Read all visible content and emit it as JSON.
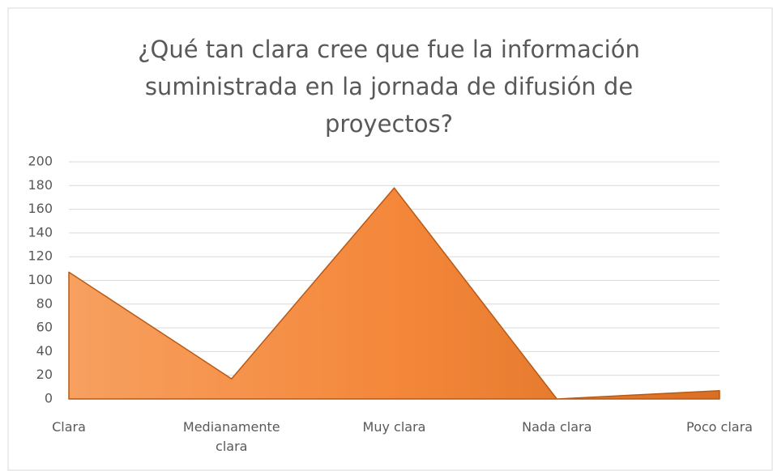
{
  "chart_data": {
    "type": "area",
    "title": "¿Qué tan clara cree que fue la información suministrada en la jornada de difusión de proyectos?",
    "categories": [
      "Clara",
      "Medianamente clara",
      "Muy clara",
      "Nada clara",
      "Poco clara"
    ],
    "values": [
      107,
      17,
      178,
      0,
      7
    ],
    "color": "#f4873a",
    "ylim": [
      0,
      200
    ],
    "yticks": [
      0,
      20,
      40,
      60,
      80,
      100,
      120,
      140,
      160,
      180,
      200
    ],
    "grid": true
  }
}
